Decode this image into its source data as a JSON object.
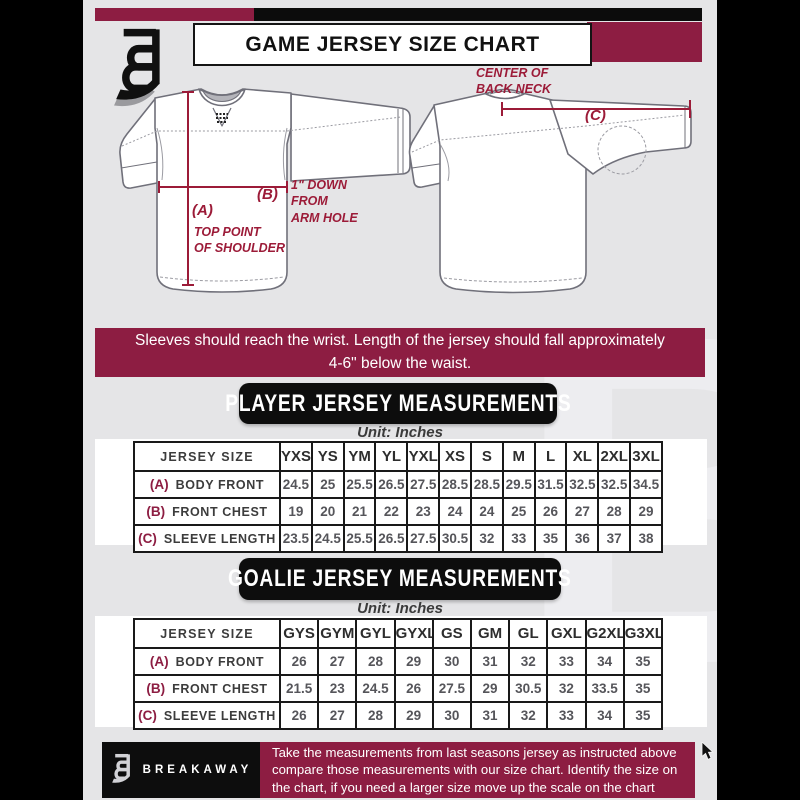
{
  "colors": {
    "maroon": "#8d1d42",
    "annotation_maroon": "#9c1b38",
    "black": "#0d0d0d",
    "page_bg": "#e5e5e7",
    "frame_bg": "#000000"
  },
  "header": {
    "title": "GAME JERSEY SIZE CHART"
  },
  "diagram": {
    "front": {
      "key_a": "(A)",
      "caption_a": [
        "TOP POINT",
        "OF SHOULDER"
      ],
      "key_b": "(B)",
      "caption_b": [
        "1\" DOWN",
        "FROM",
        "ARM HOLE"
      ]
    },
    "back": {
      "key_c": "(C)",
      "caption_c": [
        "CENTER OF",
        "BACK NECK"
      ]
    }
  },
  "banner": {
    "text": "Sleeves should reach the wrist. Length of the jersey should fall approximately 4-6\" below the waist."
  },
  "sections": {
    "player": {
      "title": "PLAYER JERSEY MEASUREMENTS",
      "unit": "Unit: Inches"
    },
    "goalie": {
      "title": "GOALIE JERSEY MEASUREMENTS",
      "unit": "Unit: Inches"
    }
  },
  "tables": {
    "player": {
      "corner": "JERSEY SIZE",
      "sizes": [
        "YXS",
        "YS",
        "YM",
        "YL",
        "YXL",
        "XS",
        "S",
        "M",
        "L",
        "XL",
        "2XL",
        "3XL"
      ],
      "rows": [
        {
          "key": "(A)",
          "label": "BODY FRONT",
          "values": [
            "24.5",
            "25",
            "25.5",
            "26.5",
            "27.5",
            "28.5",
            "28.5",
            "29.5",
            "31.5",
            "32.5",
            "32.5",
            "34.5"
          ]
        },
        {
          "key": "(B)",
          "label": "FRONT CHEST",
          "values": [
            "19",
            "20",
            "21",
            "22",
            "23",
            "24",
            "24",
            "25",
            "26",
            "27",
            "28",
            "29"
          ]
        },
        {
          "key": "(C)",
          "label": "SLEEVE LENGTH",
          "values": [
            "23.5",
            "24.5",
            "25.5",
            "26.5",
            "27.5",
            "30.5",
            "32",
            "33",
            "35",
            "36",
            "37",
            "38"
          ]
        }
      ]
    },
    "goalie": {
      "corner": "JERSEY SIZE",
      "sizes": [
        "GYS",
        "GYM",
        "GYL",
        "GYXL",
        "GS",
        "GM",
        "GL",
        "GXL",
        "G2XL",
        "G3XL"
      ],
      "rows": [
        {
          "key": "(A)",
          "label": "BODY FRONT",
          "values": [
            "26",
            "27",
            "28",
            "29",
            "30",
            "31",
            "32",
            "33",
            "34",
            "35"
          ]
        },
        {
          "key": "(B)",
          "label": "FRONT CHEST",
          "values": [
            "21.5",
            "23",
            "24.5",
            "26",
            "27.5",
            "29",
            "30.5",
            "32",
            "33.5",
            "35"
          ]
        },
        {
          "key": "(C)",
          "label": "SLEEVE LENGTH",
          "values": [
            "26",
            "27",
            "28",
            "29",
            "30",
            "31",
            "32",
            "33",
            "34",
            "35"
          ]
        }
      ]
    }
  },
  "footer": {
    "brand": "BREAKAWAY",
    "note": "Take the measurements from last seasons jersey as instructed above compare those measurements  with our size chart. Identify the size on the chart, if you need a larger size move up the scale on the chart"
  },
  "watermark": {
    "letter": "B"
  }
}
